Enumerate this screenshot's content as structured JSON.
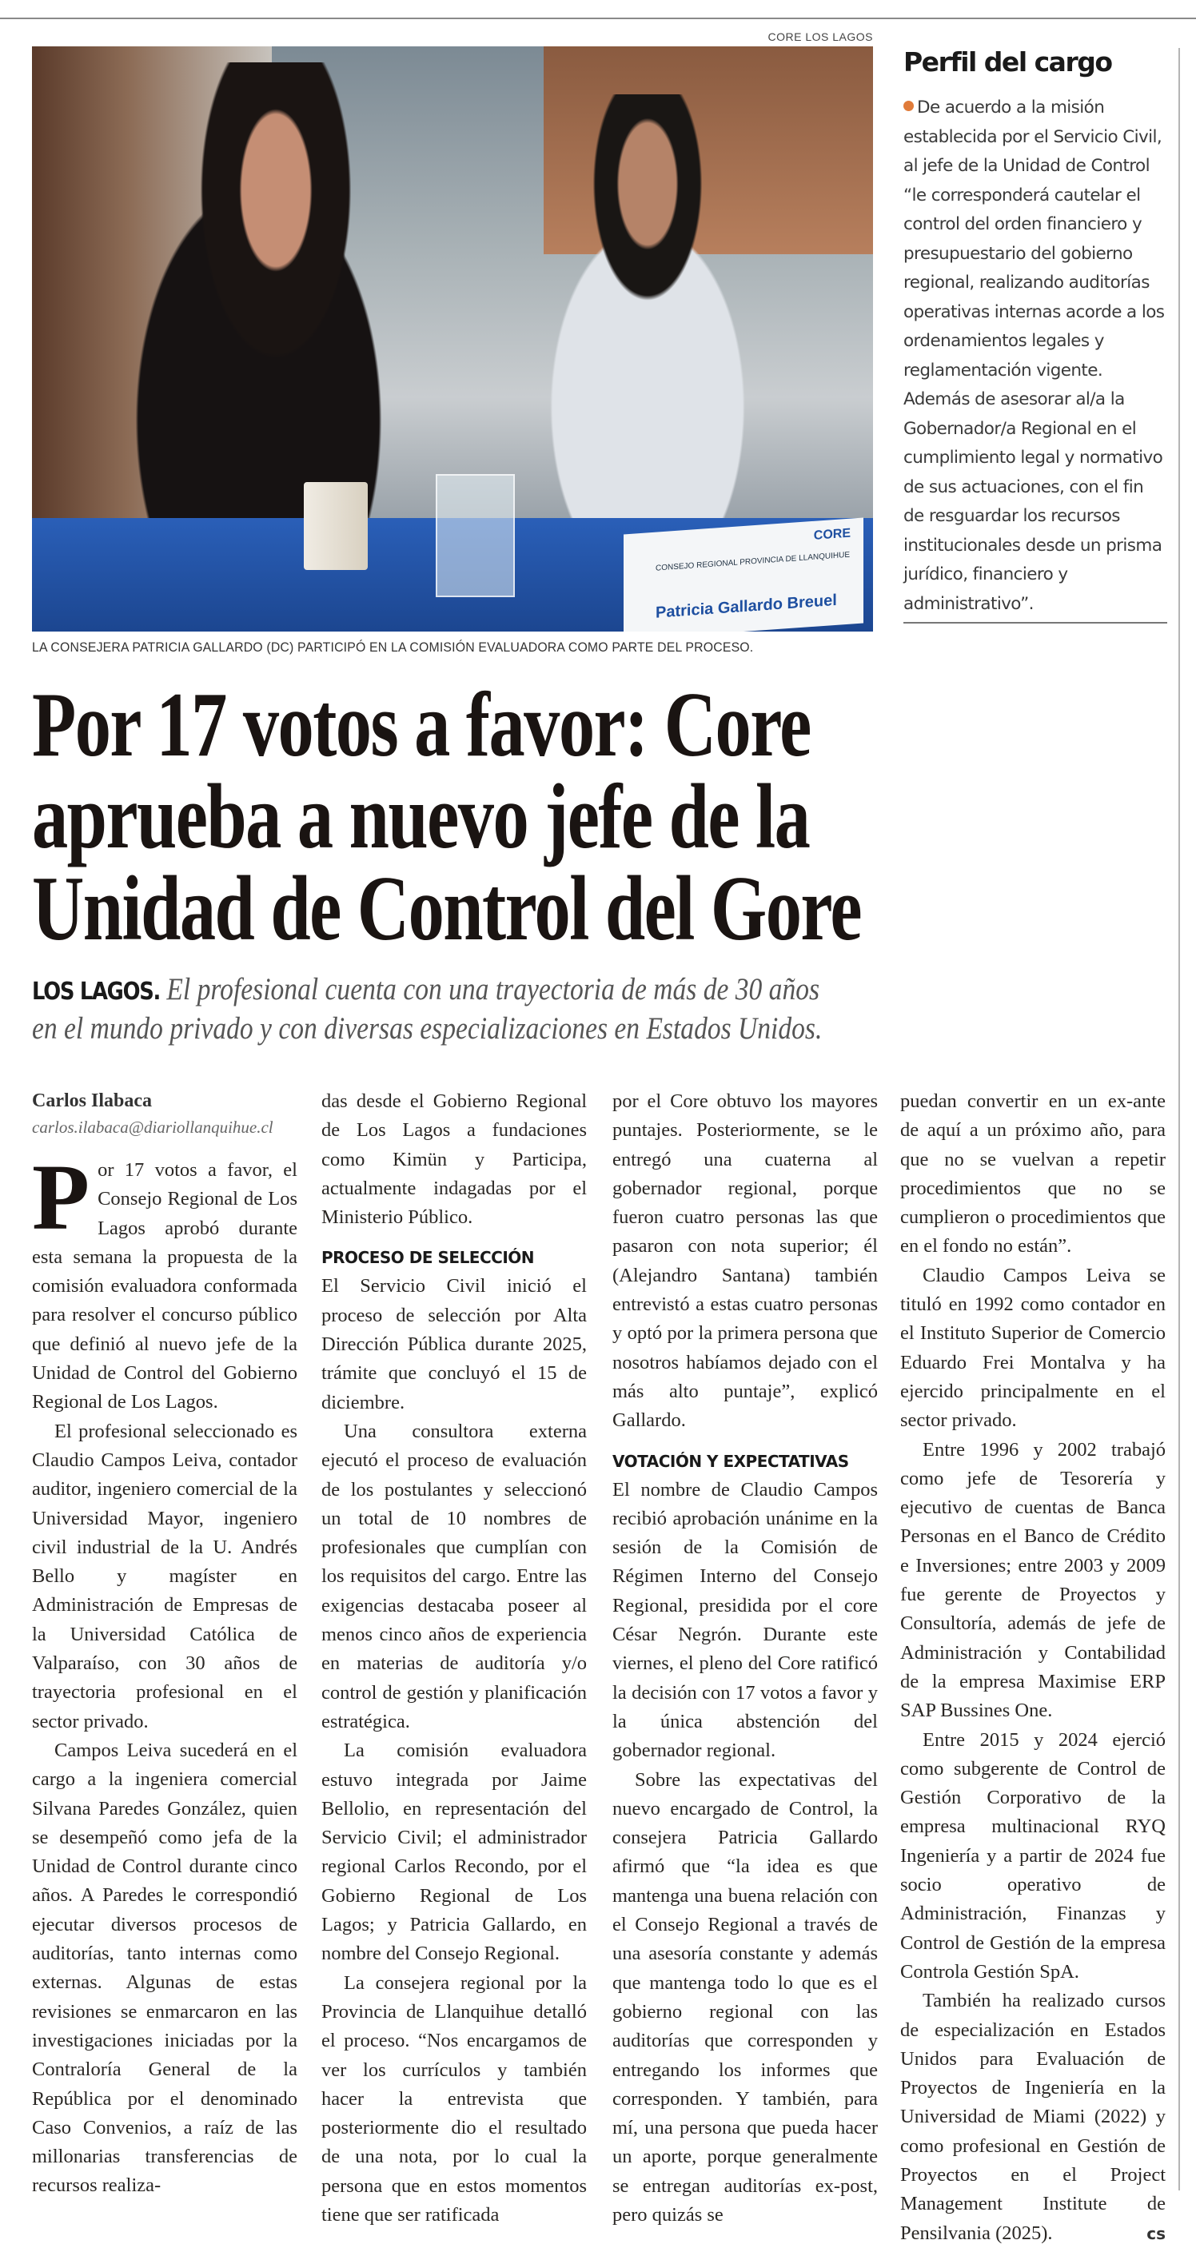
{
  "photo": {
    "credit": "CORE LOS LAGOS",
    "caption": "LA CONSEJERA PATRICIA GALLARDO (DC) PARTICIPÓ EN LA COMISIÓN EVALUADORA COMO PARTE DEL PROCESO.",
    "placard_org": "CONSEJO REGIONAL PROVINCIA DE LLANQUIHUE",
    "placard_logo": "CORE",
    "placard_name": "Patricia Gallardo Breuel"
  },
  "sidebar": {
    "title": "Perfil del cargo",
    "bullet_color": "#e07b39",
    "text": "De acuerdo a la misión establecida por el Servicio Civil, al jefe de la Unidad de Control “le corresponderá cautelar el control del orden financiero y presupuestario del gobierno regional, realizando auditorías operativas internas acorde a los ordenamientos legales y reglamentación vigente. Además de asesorar al/a la Gobernador/a Regional en el cumplimiento legal y normativo de sus actuaciones, con el fin de resguardar los recursos institucionales desde un prisma jurídico, financiero y administrativo”."
  },
  "headline": {
    "lines": [
      "Por 17 votos a favor: Core",
      "aprueba a nuevo jefe de la",
      "Unidad de Control del Gore"
    ]
  },
  "deck": {
    "place": "LOS LAGOS.",
    "line1": "El profesional cuenta con una trayectoria de más de 30 años",
    "line2": "en el mundo privado y con diversas especializaciones en Estados Unidos."
  },
  "byline": {
    "author": "Carlos Ilabaca",
    "email": "carlos.ilabaca@diariollanquihue.cl"
  },
  "body": {
    "drop_cap": "P",
    "col1": [
      "or 17 votos a favor, el Consejo Regional de Los Lagos aprobó durante esta semana la propuesta de la comisión evaluadora conformada para resolver el concurso público que definió al nuevo jefe de la Unidad de Control del Gobierno Regional de Los Lagos.",
      "El profesional seleccionado es Claudio Campos Leiva, contador auditor, ingeniero comercial de la Universidad Mayor, ingeniero civil industrial de la U. Andrés Bello y magíster en Administración de Empresas de la Universidad Católica de Valparaíso, con 30 años de trayectoria profesional en el sector privado.",
      "Campos Leiva sucederá en el cargo a la ingeniera comercial Silvana Paredes González, quien se desempeñó como jefa de la Unidad de Control durante cinco años. A Paredes le correspondió ejecutar diversos procesos de auditorías, tanto internas como externas. Algunas de estas revisiones se enmarcaron en las investigaciones iniciadas por la Contraloría General de la República por el denominado Caso Convenios, a raíz de las millonarias transferencias de recursos realiza-"
    ],
    "col2": [
      "das desde el Gobierno Regional de Los Lagos a fundaciones como Kimün y Participa, actualmente indagadas por el Ministerio Público.",
      "El Servicio Civil inició el proceso de selección por Alta Dirección Pública durante 2025, trámite que concluyó el 15 de diciembre.",
      "Una consultora externa ejecutó el proceso de evaluación de los postulantes y seleccionó un total de 10 nombres de profesionales que cumplían con los requisitos del cargo. Entre las exigencias destacaba poseer al menos cinco años de experiencia en materias de auditoría y/o control de gestión y planificación estratégica.",
      "La comisión evaluadora estuvo integrada por Jaime Bellolio, en representación del Servicio Civil; el administrador regional Carlos Recondo, por el Gobierno Regional de Los Lagos; y Patricia Gallardo, en nombre del Consejo Regional.",
      "La consejera regional por la Provincia de Llanquihue detalló el proceso. “Nos encargamos de ver los currículos y también hacer la entrevista que posteriormente dio el resultado de una nota, por lo cual la persona que en estos momentos tiene que ser ratificada"
    ],
    "subhead1": "PROCESO DE SELECCIÓN",
    "col3": [
      "por el Core obtuvo los mayores puntajes. Posteriormente, se le entregó una cuaterna al gobernador regional, porque fueron cuatro personas las que pasaron con nota superior; él (Alejandro Santana) también entrevistó a estas cuatro personas y optó por la primera persona que nosotros habíamos dejado con el más alto puntaje”, explicó Gallardo.",
      "El nombre de Claudio Campos recibió aprobación unánime en la sesión de la Comisión de Régimen Interno del Consejo Regional, presidida por el core César Negrón. Durante este viernes, el pleno del Core ratificó la decisión con 17 votos a favor y la única abstención del gobernador regional.",
      "Sobre las expectativas del nuevo encargado de Control, la consejera Patricia Gallardo afirmó que “la idea es que mantenga una buena relación con el Consejo Regional a través de una asesoría constante y además que mantenga todo lo que es el gobierno regional con las auditorías que corresponden y entregando los informes que corresponden. Y también, para mí, una persona que pueda hacer un aporte, porque generalmente se entregan auditorías ex-post, pero quizás se"
    ],
    "subhead2": "VOTACIÓN Y EXPECTATIVAS",
    "col4": [
      "puedan convertir en un ex-ante de aquí a un próximo año, para que no se vuelvan a repetir procedimientos que no se cumplieron o procedimientos que en el fondo no están”.",
      "Claudio Campos Leiva se tituló en 1992 como contador en el Instituto Superior de Comercio Eduardo Frei Montalva y ha ejercido principalmente en el sector privado.",
      "Entre 1996 y 2002 trabajó como jefe de Tesorería y ejecutivo de cuentas de Banca Personas en el Banco de Crédito e Inversiones; entre 2003 y 2009 fue gerente de Proyectos y Consultoría, además de jefe de Administración y Contabilidad de la empresa Maximise ERP SAP Bussines One.",
      "Entre 2015 y 2024 ejerció como subgerente de Control de Gestión Corporativo de la empresa multinacional RYQ Ingeniería y a partir de 2024 fue socio operativo de Administración, Finanzas y Control de Gestión de la empresa Controla Gestión SpA.",
      "También ha realizado cursos de especialización en Estados Unidos para Evaluación de Proyectos de Ingeniería en la Universidad de Miami (2022) y como profesional en Gestión de Proyectos en el Project Management Institute de Pensilvania (2025)."
    ],
    "end_mark": "cs"
  }
}
